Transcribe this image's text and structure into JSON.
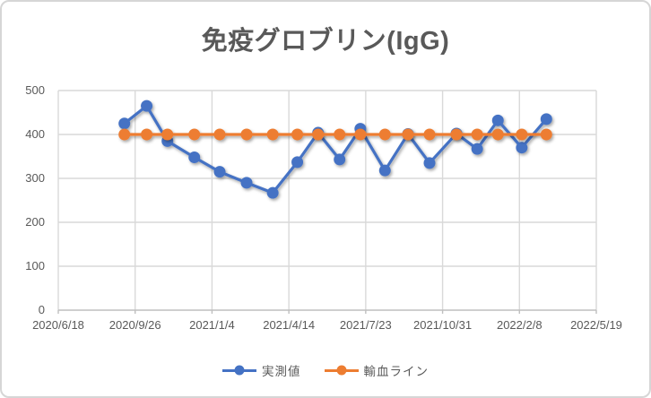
{
  "window": {
    "background": "#ffffff",
    "border_color": "#d6d6d6"
  },
  "chart_data": {
    "type": "line",
    "title": "免疫グロブリン(IgG)",
    "title_color": "#595959",
    "grid": true,
    "legend_position": "bottom",
    "colors": {
      "gridline": "#d9d9d9",
      "axis_line": "#bfbfbf",
      "tick_label": "#595959"
    },
    "x_axis": {
      "type": "date",
      "start": "2020/6/18",
      "end": "2022/5/19",
      "tick_interval_days": 100,
      "tick_labels": [
        "2020/6/18",
        "2020/9/26",
        "2021/1/4",
        "2021/4/14",
        "2021/7/23",
        "2021/10/31",
        "2022/2/8",
        "2022/5/19"
      ]
    },
    "y_axis": {
      "min": 0,
      "max": 500,
      "step": 100,
      "tick_labels": [
        "0",
        "100",
        "200",
        "300",
        "400",
        "500"
      ]
    },
    "x_dates": [
      "2020/9/12",
      "2020/10/11",
      "2020/11/7",
      "2020/12/12",
      "2021/1/14",
      "2021/2/18",
      "2021/3/24",
      "2021/4/25",
      "2021/5/22",
      "2021/6/19",
      "2021/7/16",
      "2021/8/17",
      "2021/9/16",
      "2021/10/14",
      "2021/11/18",
      "2021/12/15",
      "2022/1/11",
      "2022/2/11",
      "2022/3/15"
    ],
    "series": [
      {
        "name": "実測値",
        "color": "#4472C4",
        "values": [
          425,
          465,
          385,
          348,
          315,
          290,
          267,
          337,
          404,
          343,
          413,
          318,
          401,
          335,
          402,
          367,
          432,
          370,
          435
        ]
      },
      {
        "name": "輸血ライン",
        "color": "#ED7D31",
        "values": [
          400,
          400,
          400,
          400,
          400,
          400,
          400,
          400,
          400,
          400,
          400,
          400,
          400,
          400,
          400,
          400,
          400,
          400,
          400
        ]
      }
    ]
  }
}
